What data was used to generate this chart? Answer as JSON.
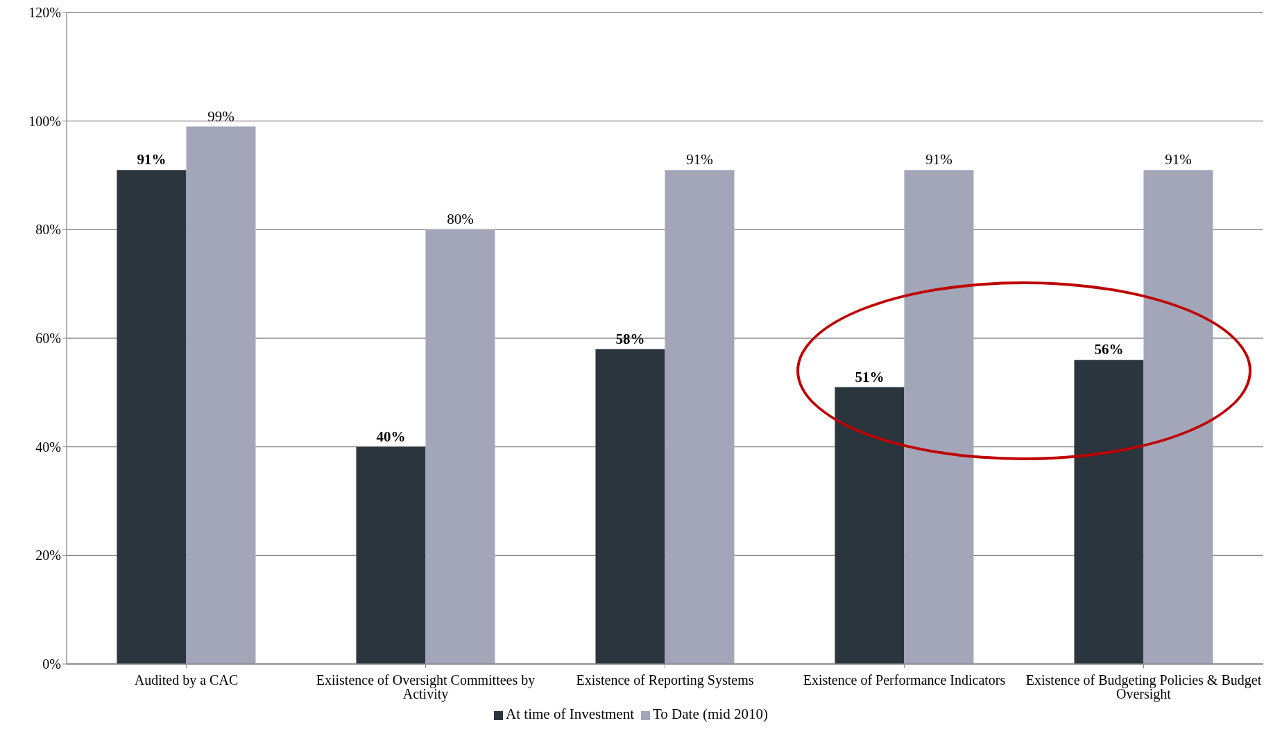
{
  "chart_data": {
    "type": "bar",
    "categories": [
      "Audited by a CAC",
      "Exiistence of Oversight Committees by Activity",
      "Existence of Reporting Systems",
      "Existence of Performance Indicators",
      "Existence of Budgeting Policies & Budget Oversight"
    ],
    "series": [
      {
        "name": "At time of Investment",
        "color": "#2b353d",
        "values": [
          91,
          40,
          58,
          51,
          56
        ],
        "value_labels": [
          "91%",
          "40%",
          "58%",
          "51%",
          "56%"
        ]
      },
      {
        "name": "To Date (mid 2010)",
        "color": "#a2a6b8",
        "values": [
          99,
          80,
          91,
          91,
          91
        ],
        "value_labels": [
          "99%",
          "80%",
          "91%",
          "91%",
          "91%"
        ]
      }
    ],
    "ylim": [
      0,
      120
    ],
    "yticks": [
      {
        "value": 0,
        "label": "0%"
      },
      {
        "value": 20,
        "label": "20%"
      },
      {
        "value": 40,
        "label": "40%"
      },
      {
        "value": 60,
        "label": "60%"
      },
      {
        "value": 80,
        "label": "80%"
      },
      {
        "value": 100,
        "label": "100%"
      },
      {
        "value": 120,
        "label": "120%"
      }
    ],
    "grid": "y",
    "legend": "bottom"
  }
}
